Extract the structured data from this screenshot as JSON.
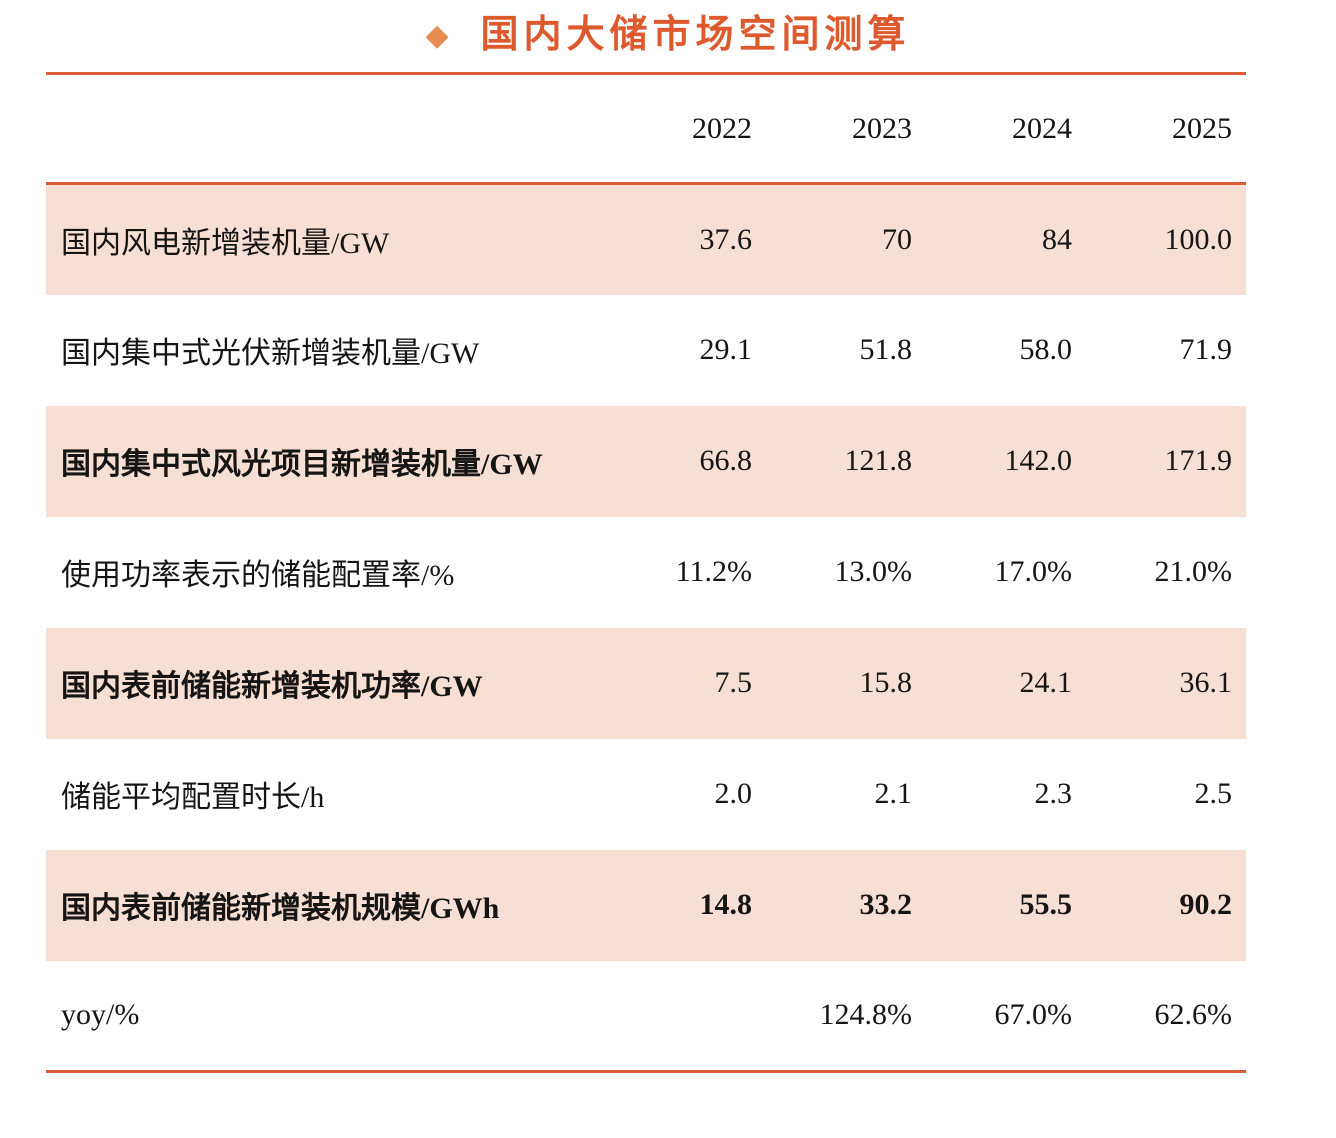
{
  "title": {
    "bullet": "◆",
    "text": "国内大储市场空间测算"
  },
  "colors": {
    "accent_rule": "#d85f37",
    "title_text": "#dd5a2e",
    "diamond_bullet": "#e78b50",
    "row_shade": "#f8dfd3",
    "body_text": "#151515"
  },
  "table": {
    "columns": [
      "2022",
      "2023",
      "2024",
      "2025"
    ],
    "rows": [
      {
        "label": "国内风电新增装机量/GW",
        "values": [
          "37.6",
          "70",
          "84",
          "100.0"
        ],
        "shaded": true,
        "bold_label": false,
        "bold_values": false
      },
      {
        "label": "国内集中式光伏新增装机量/GW",
        "values": [
          "29.1",
          "51.8",
          "58.0",
          "71.9"
        ],
        "shaded": false,
        "bold_label": false,
        "bold_values": false
      },
      {
        "label": "国内集中式风光项目新增装机量/GW",
        "values": [
          "66.8",
          "121.8",
          "142.0",
          "171.9"
        ],
        "shaded": true,
        "bold_label": true,
        "bold_values": false
      },
      {
        "label": "使用功率表示的储能配置率/%",
        "values": [
          "11.2%",
          "13.0%",
          "17.0%",
          "21.0%"
        ],
        "shaded": false,
        "bold_label": false,
        "bold_values": false
      },
      {
        "label": "国内表前储能新增装机功率/GW",
        "values": [
          "7.5",
          "15.8",
          "24.1",
          "36.1"
        ],
        "shaded": true,
        "bold_label": true,
        "bold_values": false
      },
      {
        "label": "储能平均配置时长/h",
        "values": [
          "2.0",
          "2.1",
          "2.3",
          "2.5"
        ],
        "shaded": false,
        "bold_label": false,
        "bold_values": false
      },
      {
        "label": "国内表前储能新增装机规模/GWh",
        "values": [
          "14.8",
          "33.2",
          "55.5",
          "90.2"
        ],
        "shaded": true,
        "bold_label": true,
        "bold_values": true
      },
      {
        "label": "yoy/%",
        "values": [
          "",
          "124.8%",
          "67.0%",
          "62.6%"
        ],
        "shaded": false,
        "bold_label": false,
        "bold_values": false
      }
    ]
  }
}
